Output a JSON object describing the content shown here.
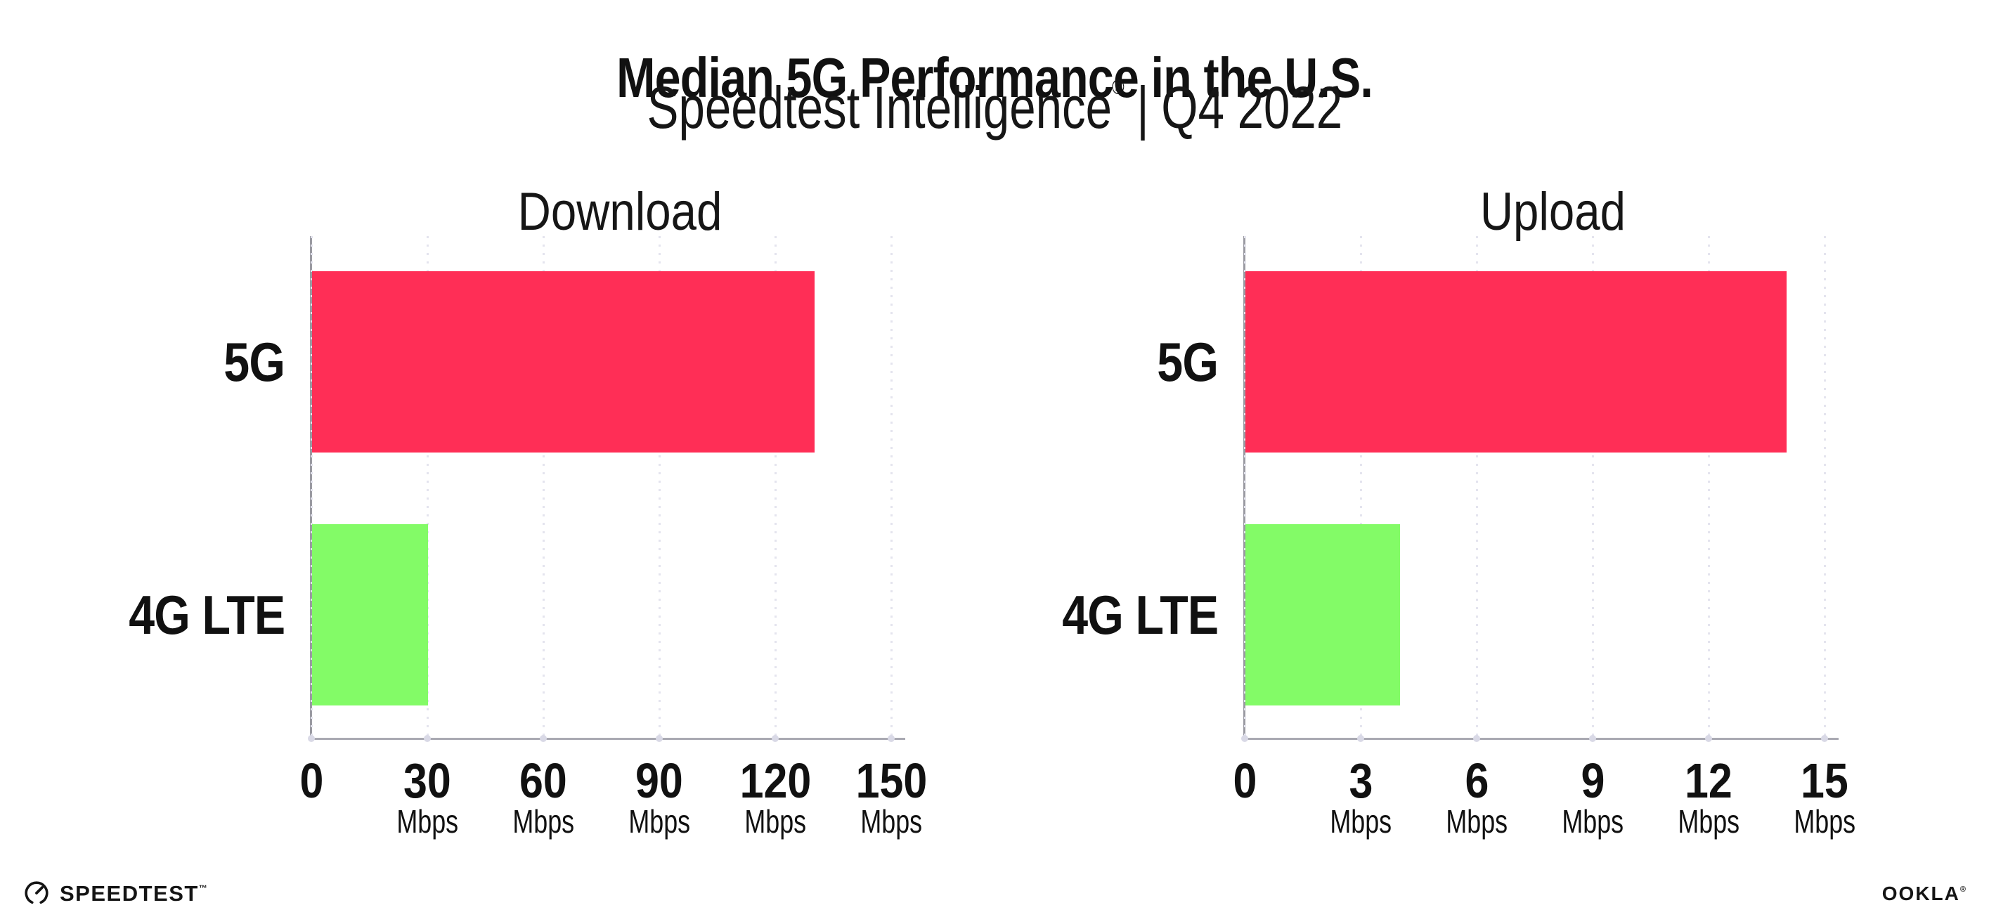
{
  "header": {
    "title": "Median 5G Performance in the U.S.",
    "subtitle_brand": "Speedtest Intelligence",
    "subtitle_registered": "®",
    "subtitle_divider": "|",
    "subtitle_period": "Q4 2022"
  },
  "charts_shared": {
    "unit_label": "Mbps"
  },
  "chart_data": [
    {
      "type": "bar",
      "orientation": "horizontal",
      "title": "Download",
      "categories": [
        "5G",
        "4G LTE"
      ],
      "values": [
        130,
        30
      ],
      "unit": "Mbps",
      "xlim": [
        0,
        150
      ],
      "xticks": [
        0,
        30,
        60,
        90,
        120,
        150
      ],
      "bar_colors": [
        "#ff2e56",
        "#83fb67"
      ],
      "grid": "dotted-vertical",
      "legend": "none"
    },
    {
      "type": "bar",
      "orientation": "horizontal",
      "title": "Upload",
      "categories": [
        "5G",
        "4G LTE"
      ],
      "values": [
        14,
        4
      ],
      "unit": "Mbps",
      "xlim": [
        0,
        15
      ],
      "xticks": [
        0,
        3,
        6,
        9,
        12,
        15
      ],
      "bar_colors": [
        "#ff2e56",
        "#83fb67"
      ],
      "grid": "dotted-vertical",
      "legend": "none"
    }
  ],
  "footer": {
    "speedtest_label": "SPEEDTEST",
    "speedtest_trademark": "™",
    "speedtest_icon": "gauge-icon",
    "ookla_label": "OOKLA",
    "ookla_registered": "®"
  },
  "colors": {
    "bar_5g": "#ff2e56",
    "bar_4g_lte": "#83fb67",
    "x_axis_line": "#a9a9b2",
    "y_axis_line": "#9a9aa2",
    "gridline": "#e4e4ee",
    "tick_dot": "#d9d9e6",
    "text": "#111111",
    "footer_text": "#141414"
  }
}
